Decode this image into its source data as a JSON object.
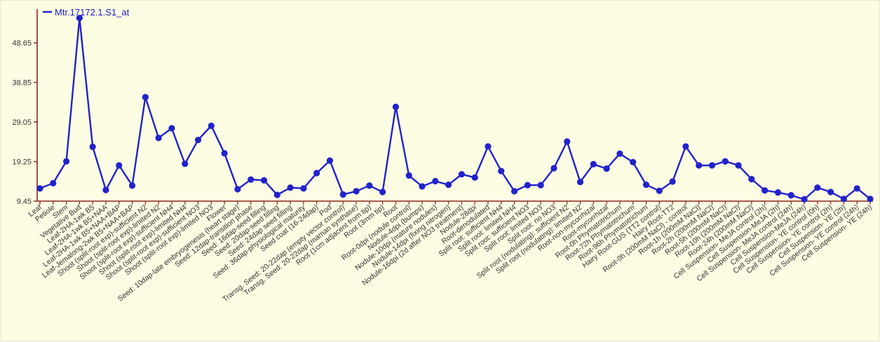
{
  "chart_data": {
    "type": "line",
    "legend_position": "top-left",
    "grid": false,
    "series": [
      {
        "name": "Mtr.17172.1.S1_at",
        "color": "#2222cc",
        "values": [
          12.6,
          13.9,
          19.3,
          54.8,
          22.9,
          12.2,
          18.3,
          13.3,
          35.2,
          25.1,
          27.5,
          18.7,
          24.6,
          28.1,
          21.3,
          12.4,
          14.8,
          14.6,
          11.0,
          12.8,
          12.6,
          16.4,
          19.5,
          11.1,
          11.9,
          13.3,
          11.7,
          32.8,
          15.8,
          13.1,
          14.4,
          13.5,
          16.1,
          15.3,
          23.0,
          16.9,
          11.9,
          13.4,
          13.4,
          17.6,
          24.2,
          14.2,
          18.6,
          17.5,
          21.2,
          19.1,
          13.5,
          12.0,
          14.3,
          23.0,
          18.3,
          18.3,
          19.3,
          18.3,
          14.9,
          12.1,
          11.6,
          10.9,
          9.9,
          12.8,
          11.7,
          10.0,
          12.6,
          10.0
        ]
      }
    ],
    "y_ticks": [
      "48.65",
      "38.85",
      "29.05",
      "19.25",
      "9.45"
    ],
    "ylim": [
      9.45,
      57
    ],
    "categories": [
      "Leaf",
      "Petiole",
      "Stem",
      "Vegetative Bud",
      "Leaf-2HA-1wk B5",
      "Leaf-2HA-1wk B5+NAA",
      "Leaf-2HA-1wk B5+NAA+BAP",
      "Leaf-Jemalong-2wk B5+NAA+BAP",
      "Shoot (split-root exp)-sufficient N2",
      "Shoot (split-root exp)-limited N2",
      "Shoot (split-root exp)-sufficient NH4",
      "Shoot (split-root exp)-limited NH4",
      "Shoot (split-root exp)-sufficient NO3",
      "Shoot (split-root exp)-limited NO3",
      "Flower",
      "Seed: 10dap-late embryogenesis (heart stage)",
      "Seed: 12dap-transition phase",
      "Seed: 16dap-seed filling",
      "Seed: 20dap-seed filling",
      "Seed: 24dap seed filling",
      "Seed: 36dap-physiological maturity",
      "Seed coat (16-24dap)",
      "Pod",
      "Transg. Seed: 20-22dap (empty vector control)",
      "Transg. Seed: 20-22dap (maman synthase)",
      "Root (1cm adjacent from tip)",
      "Root (3mm tip)",
      "Root",
      "Root-0dpi (nodule control)",
      "Nodule-4dpi (bumps)",
      "Nodule-10dpi (mature nodules)",
      "Nodule-14dpi (fixing nitrogen)",
      "Nodule-16dpi (2d after NO3 treatment)",
      "Nodule-28dpi",
      "Root-denodulated",
      "Split root: sufficient NH4",
      "Split root: limited NH4",
      "Split root: sufficient NO3",
      "Split root: limited NO3",
      "Split root: no NO3",
      "Split root (nodulating): sufficient N2",
      "Split root (nodulating): limited N2",
      "Root-non-mycorrhizal",
      "Root-mycorrhizal",
      "Root-0h Phymatotrichum",
      "Root-72h Phymatotrichum",
      "Root-96h Phymatotrichum",
      "Hairy Root-GUS (TT2 control)",
      "Hairy Root-TT2",
      "Root-0h (200mM NaCl) - control",
      "Root-1h (200mM NaCl)",
      "Root-2h (200mM NaCl)",
      "Root-5h (200mM NaCl)",
      "Root-10h (200mM NaCl)",
      "Root-24h (200mM NaCl)",
      "Cell Suspension- MeJA control (2h)",
      "Cell Suspension-MeJA (2h)",
      "Cell Suspension- MeJA control (24h)",
      "Cell Suspension-MeJA (24h)",
      "Cell Suspension- YE control (0h)",
      "Cell Suspension- YE control (2h)",
      "Cell Suspension- YE (2h)",
      "Cell Suspension- YE control (24h)",
      "Cell Suspension- YE (24h)"
    ]
  }
}
